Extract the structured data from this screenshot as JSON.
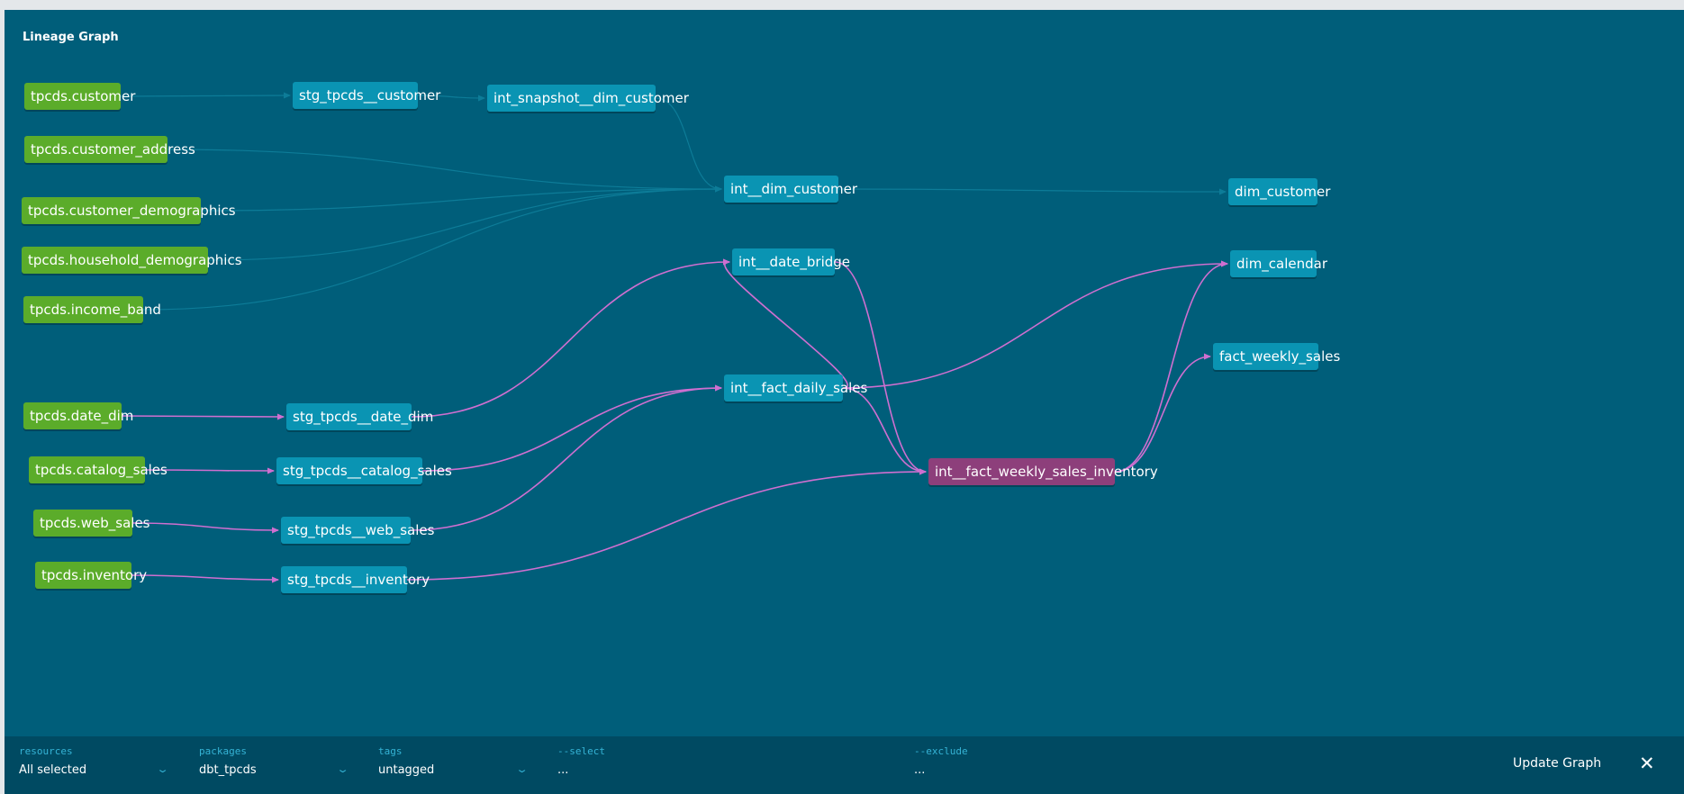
{
  "title": "Lineage Graph",
  "colors": {
    "background": "#005e7a",
    "source_node": "#5bac2a",
    "model_node": "#0a94b3",
    "selected_node": "#8d3f7b",
    "dim_edge": "#0d7c98",
    "active_edge": "#cf6fd0"
  },
  "nodes": [
    {
      "id": "src_customer",
      "label": "tpcds.customer",
      "kind": "source"
    },
    {
      "id": "src_customer_address",
      "label": "tpcds.customer_address",
      "kind": "source"
    },
    {
      "id": "src_customer_demographics",
      "label": "tpcds.customer_demographics",
      "kind": "source"
    },
    {
      "id": "src_household_demographics",
      "label": "tpcds.household_demographics",
      "kind": "source"
    },
    {
      "id": "src_income_band",
      "label": "tpcds.income_band",
      "kind": "source"
    },
    {
      "id": "src_date_dim",
      "label": "tpcds.date_dim",
      "kind": "source"
    },
    {
      "id": "src_catalog_sales",
      "label": "tpcds.catalog_sales",
      "kind": "source"
    },
    {
      "id": "src_web_sales",
      "label": "tpcds.web_sales",
      "kind": "source"
    },
    {
      "id": "src_inventory",
      "label": "tpcds.inventory",
      "kind": "source"
    },
    {
      "id": "stg_customer",
      "label": "stg_tpcds__customer",
      "kind": "model"
    },
    {
      "id": "int_snapshot_dim_customer",
      "label": "int_snapshot__dim_customer",
      "kind": "model"
    },
    {
      "id": "int_dim_customer",
      "label": "int__dim_customer",
      "kind": "model"
    },
    {
      "id": "dim_customer",
      "label": "dim_customer",
      "kind": "model"
    },
    {
      "id": "int_date_bridge",
      "label": "int__date_bridge",
      "kind": "model"
    },
    {
      "id": "dim_calendar",
      "label": "dim_calendar",
      "kind": "model"
    },
    {
      "id": "fact_weekly_sales",
      "label": "fact_weekly_sales",
      "kind": "model"
    },
    {
      "id": "int_fact_daily_sales",
      "label": "int__fact_daily_sales",
      "kind": "model"
    },
    {
      "id": "stg_date_dim",
      "label": "stg_tpcds__date_dim",
      "kind": "model"
    },
    {
      "id": "stg_catalog_sales",
      "label": "stg_tpcds__catalog_sales",
      "kind": "model"
    },
    {
      "id": "stg_web_sales",
      "label": "stg_tpcds__web_sales",
      "kind": "model"
    },
    {
      "id": "stg_inventory",
      "label": "stg_tpcds__inventory",
      "kind": "model"
    },
    {
      "id": "int_fact_weekly_sales_inventory",
      "label": "int__fact_weekly_sales_inventory",
      "kind": "selected"
    }
  ],
  "edges": [
    {
      "from": "src_customer",
      "to": "stg_customer",
      "active": false
    },
    {
      "from": "stg_customer",
      "to": "int_snapshot_dim_customer",
      "active": false
    },
    {
      "from": "int_snapshot_dim_customer",
      "to": "int_dim_customer",
      "active": false
    },
    {
      "from": "src_customer_address",
      "to": "int_dim_customer",
      "active": false
    },
    {
      "from": "src_customer_demographics",
      "to": "int_dim_customer",
      "active": false
    },
    {
      "from": "src_household_demographics",
      "to": "int_dim_customer",
      "active": false
    },
    {
      "from": "src_income_band",
      "to": "int_dim_customer",
      "active": false
    },
    {
      "from": "int_dim_customer",
      "to": "dim_customer",
      "active": false
    },
    {
      "from": "src_date_dim",
      "to": "stg_date_dim",
      "active": true
    },
    {
      "from": "src_catalog_sales",
      "to": "stg_catalog_sales",
      "active": true
    },
    {
      "from": "src_web_sales",
      "to": "stg_web_sales",
      "active": true
    },
    {
      "from": "src_inventory",
      "to": "stg_inventory",
      "active": true
    },
    {
      "from": "stg_date_dim",
      "to": "int_date_bridge",
      "active": true
    },
    {
      "from": "stg_catalog_sales",
      "to": "int_fact_daily_sales",
      "active": true
    },
    {
      "from": "stg_web_sales",
      "to": "int_fact_daily_sales",
      "active": true
    },
    {
      "from": "int_fact_daily_sales",
      "to": "int_date_bridge",
      "active": true
    },
    {
      "from": "int_fact_daily_sales",
      "to": "dim_calendar",
      "active": true
    },
    {
      "from": "int_fact_daily_sales",
      "to": "int_fact_weekly_sales_inventory",
      "active": true
    },
    {
      "from": "int_date_bridge",
      "to": "int_fact_weekly_sales_inventory",
      "active": true
    },
    {
      "from": "stg_inventory",
      "to": "int_fact_weekly_sales_inventory",
      "active": true
    },
    {
      "from": "int_fact_weekly_sales_inventory",
      "to": "dim_calendar",
      "active": true
    },
    {
      "from": "int_fact_weekly_sales_inventory",
      "to": "fact_weekly_sales",
      "active": true
    }
  ],
  "toolbar": {
    "resources_label": "resources",
    "resources_value": "All selected",
    "packages_label": "packages",
    "packages_value": "dbt_tpcds",
    "tags_label": "tags",
    "tags_value": "untagged",
    "select_label": "--select",
    "select_value": "...",
    "exclude_label": "--exclude",
    "exclude_value": "...",
    "update_label": "Update Graph",
    "close_icon": "close-icon"
  }
}
